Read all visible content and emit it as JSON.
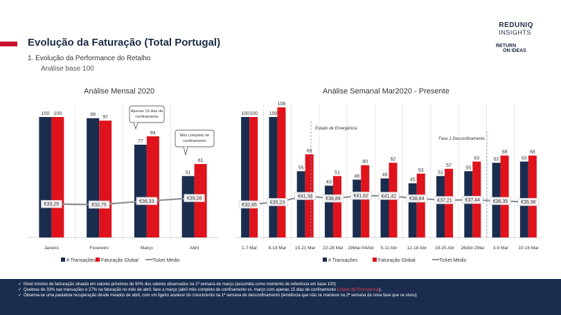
{
  "header": {
    "title": "Evolução da Faturação (Total Portugal)",
    "subtitle": "1.  Evolução da Performance do Retalho",
    "subsubtitle": "Análise base 100",
    "logo_top_1": "REDUNIQ",
    "logo_top_2": "INSIGHTS",
    "logo_bottom_1": "RETURN",
    "logo_bottom_2": "ON IDEAS"
  },
  "colors": {
    "transacoes": "#1b2d4f",
    "faturacao": "#e0121b",
    "ticket": "#8a8f96",
    "accent": "#c8102e"
  },
  "legend": {
    "transacoes": "# Transações",
    "faturacao": "Faturação Global",
    "ticket": "Ticket Médio"
  },
  "chart_data": [
    {
      "type": "bar",
      "title": "Análise Mensal 2020",
      "categories": [
        "Janeiro",
        "Fevereiro",
        "Março",
        "Abril"
      ],
      "series": [
        {
          "name": "# Transações",
          "values": [
            100,
            99,
            77,
            51
          ]
        },
        {
          "name": "Faturação Global",
          "values": [
            100,
            97,
            84,
            61
          ]
        }
      ],
      "line": {
        "name": "Ticket Médio",
        "values": [
          33.29,
          32.75,
          36.33,
          39.28
        ],
        "labels": [
          "€33,29",
          "€32,75",
          "€36,33",
          "€39,28"
        ]
      },
      "ylim": [
        0,
        120
      ],
      "callouts": [
        "Apenas 15 dias de confinamento",
        "Mês completo de confinamento"
      ]
    },
    {
      "type": "bar",
      "title": "Análise Semanal Mar2020 - Presente",
      "categories": [
        "1-7 Mar",
        "8-14 Mar",
        "15-21 Mar",
        "22-28 Mar",
        "29Mar-04Abr",
        "5-11 Abr",
        "12-18 Abr",
        "19-25 Abr",
        "26Abr-2Mai",
        "3-9 Mai",
        "10-16 Mai"
      ],
      "series": [
        {
          "name": "# Transações",
          "values": [
            100,
            100,
            55,
            43,
            48,
            49,
            45,
            51,
            55,
            62,
            63
          ]
        },
        {
          "name": "Faturação Global",
          "values": [
            100,
            108,
            69,
            51,
            60,
            62,
            53,
            57,
            63,
            68,
            68
          ]
        }
      ],
      "line": {
        "name": "Ticket Médio",
        "values": [
          32.85,
          35.23,
          41.34,
          38.89,
          41.62,
          41.42,
          38.84,
          37.21,
          37.44,
          36.35,
          35.36
        ],
        "labels": [
          "€32,85",
          "€35,23",
          "€41,34",
          "€38,89",
          "€41,62",
          "€41,42",
          "€38,84",
          "€37,21",
          "€37,44",
          "€36,35",
          "€35,36"
        ]
      },
      "ylim": [
        0,
        120
      ],
      "annotations": [
        "Estado de Emergência",
        "Fase 1 Desconfinamento"
      ]
    }
  ],
  "footer": {
    "b1": "Nível mínimo de facturação situado em valores próximos de 50% dos valores observados na 1ª semana de março (assumida como momento de referência em base 100)",
    "b2": "Quebras de 33% nas transações e 27% na faturação no mês de abril, face a março (abril mês completo de confinamento vs. março com apenas 15 dias de confinamento ",
    "b2_hl": "Estado de Emergência",
    "b2_end": ").",
    "b3": "Observa-se uma paulatina recuperação desde meados de abril, com um ligeiro acelerar do crescimento na 1ª semana de desconfinamento (tendência que não se manteve na 2ª semana da nova fase que se vivou)"
  }
}
